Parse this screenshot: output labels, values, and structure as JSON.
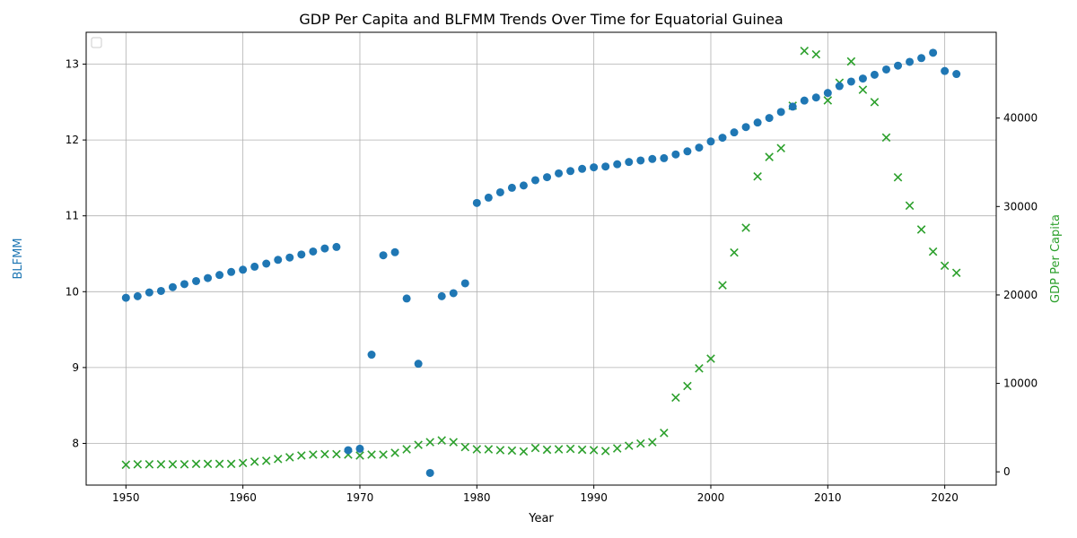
{
  "chart_data": {
    "type": "scatter",
    "title": "GDP Per Capita and BLFMM Trends Over Time for Equatorial Guinea",
    "xlabel": "Year",
    "ylabel_left": "BLFMM",
    "ylabel_right": "GDP Per Capita",
    "xlim": [
      1946.6,
      2024.4
    ],
    "ylim_left": [
      7.45,
      13.42
    ],
    "ylim_right": [
      -1500,
      49700
    ],
    "x_ticks": [
      1950,
      1960,
      1970,
      1980,
      1990,
      2000,
      2010,
      2020
    ],
    "x_tick_labels": [
      "1950",
      "1960",
      "1970",
      "1980",
      "1990",
      "2000",
      "2010",
      "2020"
    ],
    "y_left_ticks": [
      8,
      9,
      10,
      11,
      12,
      13
    ],
    "y_left_tick_labels": [
      "8",
      "9",
      "10",
      "11",
      "12",
      "13"
    ],
    "y_right_ticks": [
      0,
      10000,
      20000,
      30000,
      40000
    ],
    "y_right_tick_labels": [
      "0",
      "10000",
      "20000",
      "30000",
      "40000"
    ],
    "grid": true,
    "legend": "top-left (empty)",
    "colors": {
      "blfmm": "#1f77b4",
      "gdp": "#2ca02c",
      "grid": "#b0b0b0",
      "axis": "#000000"
    },
    "series": [
      {
        "axis": "left",
        "marker": "circle",
        "points": [
          [
            1950,
            9.92
          ],
          [
            1951,
            9.94
          ],
          [
            1952,
            9.99
          ],
          [
            1953,
            10.01
          ],
          [
            1954,
            10.06
          ],
          [
            1955,
            10.1
          ],
          [
            1956,
            10.14
          ],
          [
            1957,
            10.18
          ],
          [
            1958,
            10.22
          ],
          [
            1959,
            10.26
          ],
          [
            1960,
            10.29
          ],
          [
            1961,
            10.33
          ],
          [
            1962,
            10.37
          ],
          [
            1963,
            10.42
          ],
          [
            1964,
            10.45
          ],
          [
            1965,
            10.49
          ],
          [
            1966,
            10.53
          ],
          [
            1967,
            10.57
          ],
          [
            1968,
            10.59
          ],
          [
            1969,
            7.91
          ],
          [
            1970,
            7.93
          ],
          [
            1971,
            9.17
          ],
          [
            1972,
            10.48
          ],
          [
            1973,
            10.52
          ],
          [
            1974,
            9.91
          ],
          [
            1975,
            9.05
          ],
          [
            1976,
            7.61
          ],
          [
            1977,
            9.94
          ],
          [
            1978,
            9.98
          ],
          [
            1979,
            10.11
          ],
          [
            1980,
            11.17
          ],
          [
            1981,
            11.24
          ],
          [
            1982,
            11.31
          ],
          [
            1983,
            11.37
          ],
          [
            1984,
            11.4
          ],
          [
            1985,
            11.47
          ],
          [
            1986,
            11.51
          ],
          [
            1987,
            11.56
          ],
          [
            1988,
            11.59
          ],
          [
            1989,
            11.62
          ],
          [
            1990,
            11.64
          ],
          [
            1991,
            11.65
          ],
          [
            1992,
            11.68
          ],
          [
            1993,
            11.71
          ],
          [
            1994,
            11.73
          ],
          [
            1995,
            11.75
          ],
          [
            1996,
            11.76
          ],
          [
            1997,
            11.81
          ],
          [
            1998,
            11.85
          ],
          [
            1999,
            11.9
          ],
          [
            2000,
            11.98
          ],
          [
            2001,
            12.03
          ],
          [
            2002,
            12.1
          ],
          [
            2003,
            12.17
          ],
          [
            2004,
            12.23
          ],
          [
            2005,
            12.29
          ],
          [
            2006,
            12.37
          ],
          [
            2007,
            12.44
          ],
          [
            2008,
            12.52
          ],
          [
            2009,
            12.56
          ],
          [
            2010,
            12.62
          ],
          [
            2011,
            12.71
          ],
          [
            2012,
            12.77
          ],
          [
            2013,
            12.81
          ],
          [
            2014,
            12.86
          ],
          [
            2015,
            12.93
          ],
          [
            2016,
            12.98
          ],
          [
            2017,
            13.03
          ],
          [
            2018,
            13.08
          ],
          [
            2019,
            13.15
          ],
          [
            2020,
            12.91
          ],
          [
            2021,
            12.87
          ]
        ]
      },
      {
        "axis": "right",
        "marker": "x",
        "points": [
          [
            1950,
            800
          ],
          [
            1951,
            850
          ],
          [
            1952,
            850
          ],
          [
            1953,
            850
          ],
          [
            1954,
            850
          ],
          [
            1955,
            850
          ],
          [
            1956,
            900
          ],
          [
            1957,
            900
          ],
          [
            1958,
            900
          ],
          [
            1959,
            900
          ],
          [
            1960,
            1000
          ],
          [
            1961,
            1150
          ],
          [
            1962,
            1250
          ],
          [
            1963,
            1450
          ],
          [
            1964,
            1650
          ],
          [
            1965,
            1850
          ],
          [
            1966,
            1950
          ],
          [
            1967,
            2000
          ],
          [
            1968,
            2000
          ],
          [
            1969,
            1950
          ],
          [
            1970,
            1850
          ],
          [
            1971,
            1950
          ],
          [
            1972,
            1950
          ],
          [
            1973,
            2150
          ],
          [
            1974,
            2550
          ],
          [
            1975,
            3050
          ],
          [
            1976,
            3350
          ],
          [
            1977,
            3550
          ],
          [
            1978,
            3350
          ],
          [
            1979,
            2800
          ],
          [
            1980,
            2550
          ],
          [
            1981,
            2550
          ],
          [
            1982,
            2450
          ],
          [
            1983,
            2400
          ],
          [
            1984,
            2300
          ],
          [
            1985,
            2700
          ],
          [
            1986,
            2500
          ],
          [
            1987,
            2550
          ],
          [
            1988,
            2600
          ],
          [
            1989,
            2500
          ],
          [
            1990,
            2450
          ],
          [
            1991,
            2350
          ],
          [
            1992,
            2650
          ],
          [
            1993,
            2950
          ],
          [
            1994,
            3200
          ],
          [
            1995,
            3350
          ],
          [
            1996,
            4400
          ],
          [
            1997,
            8400
          ],
          [
            1998,
            9700
          ],
          [
            1999,
            11700
          ],
          [
            2000,
            12800
          ],
          [
            2001,
            21100
          ],
          [
            2002,
            24800
          ],
          [
            2003,
            27600
          ],
          [
            2004,
            33400
          ],
          [
            2005,
            35600
          ],
          [
            2006,
            36600
          ],
          [
            2007,
            41400
          ],
          [
            2008,
            47600
          ],
          [
            2009,
            47200
          ],
          [
            2010,
            42000
          ],
          [
            2011,
            44000
          ],
          [
            2012,
            46400
          ],
          [
            2013,
            43200
          ],
          [
            2014,
            41800
          ],
          [
            2015,
            37800
          ],
          [
            2016,
            33300
          ],
          [
            2017,
            30100
          ],
          [
            2018,
            27400
          ],
          [
            2019,
            24900
          ],
          [
            2020,
            23300
          ],
          [
            2021,
            22500
          ]
        ]
      }
    ]
  }
}
